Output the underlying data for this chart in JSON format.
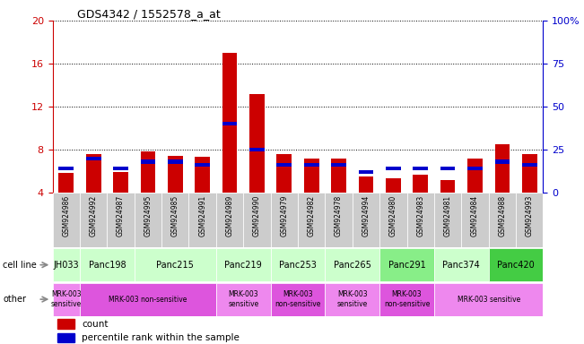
{
  "title": "GDS4342 / 1552578_a_at",
  "samples": [
    "GSM924986",
    "GSM924992",
    "GSM924987",
    "GSM924995",
    "GSM924985",
    "GSM924991",
    "GSM924989",
    "GSM924990",
    "GSM924979",
    "GSM924982",
    "GSM924978",
    "GSM924994",
    "GSM924980",
    "GSM924983",
    "GSM924981",
    "GSM924984",
    "GSM924988",
    "GSM924993"
  ],
  "count_values": [
    5.8,
    7.6,
    5.9,
    7.8,
    7.4,
    7.3,
    17.0,
    13.2,
    7.6,
    7.2,
    7.2,
    5.5,
    5.3,
    5.7,
    5.2,
    7.2,
    8.5,
    7.6
  ],
  "percentile_values": [
    14,
    20,
    14,
    18,
    18,
    16,
    40,
    25,
    16,
    16,
    16,
    12,
    14,
    14,
    14,
    14,
    18,
    16
  ],
  "y_min": 4,
  "y_max": 20,
  "y_ticks_left": [
    4,
    8,
    12,
    16,
    20
  ],
  "y_ticks_right_vals": [
    0,
    25,
    50,
    75,
    100
  ],
  "y_ticks_right_labels": [
    "0",
    "25",
    "50",
    "75",
    "100%"
  ],
  "cell_lines": [
    {
      "name": "JH033",
      "start": 0,
      "end": 1,
      "color": "#ccffcc"
    },
    {
      "name": "Panc198",
      "start": 1,
      "end": 3,
      "color": "#ccffcc"
    },
    {
      "name": "Panc215",
      "start": 3,
      "end": 6,
      "color": "#ccffcc"
    },
    {
      "name": "Panc219",
      "start": 6,
      "end": 8,
      "color": "#ccffcc"
    },
    {
      "name": "Panc253",
      "start": 8,
      "end": 10,
      "color": "#ccffcc"
    },
    {
      "name": "Panc265",
      "start": 10,
      "end": 12,
      "color": "#ccffcc"
    },
    {
      "name": "Panc291",
      "start": 12,
      "end": 14,
      "color": "#88ee88"
    },
    {
      "name": "Panc374",
      "start": 14,
      "end": 16,
      "color": "#ccffcc"
    },
    {
      "name": "Panc420",
      "start": 16,
      "end": 18,
      "color": "#44cc44"
    }
  ],
  "other_labels": [
    {
      "text": "MRK-003\nsensitive",
      "start": 0,
      "end": 1,
      "color": "#ee88ee"
    },
    {
      "text": "MRK-003 non-sensitive",
      "start": 1,
      "end": 6,
      "color": "#dd55dd"
    },
    {
      "text": "MRK-003\nsensitive",
      "start": 6,
      "end": 8,
      "color": "#ee88ee"
    },
    {
      "text": "MRK-003\nnon-sensitive",
      "start": 8,
      "end": 10,
      "color": "#dd55dd"
    },
    {
      "text": "MRK-003\nsensitive",
      "start": 10,
      "end": 12,
      "color": "#ee88ee"
    },
    {
      "text": "MRK-003\nnon-sensitive",
      "start": 12,
      "end": 14,
      "color": "#dd55dd"
    },
    {
      "text": "MRK-003 sensitive",
      "start": 14,
      "end": 18,
      "color": "#ee88ee"
    }
  ],
  "bar_color": "#cc0000",
  "pct_color": "#0000cc",
  "bar_width": 0.55,
  "bg_color": "#ffffff",
  "plot_bg_color": "#ffffff",
  "tick_label_bg": "#cccccc",
  "left_axis_color": "#cc0000",
  "right_axis_color": "#0000cc",
  "legend_count": "count",
  "legend_pct": "percentile rank within the sample"
}
